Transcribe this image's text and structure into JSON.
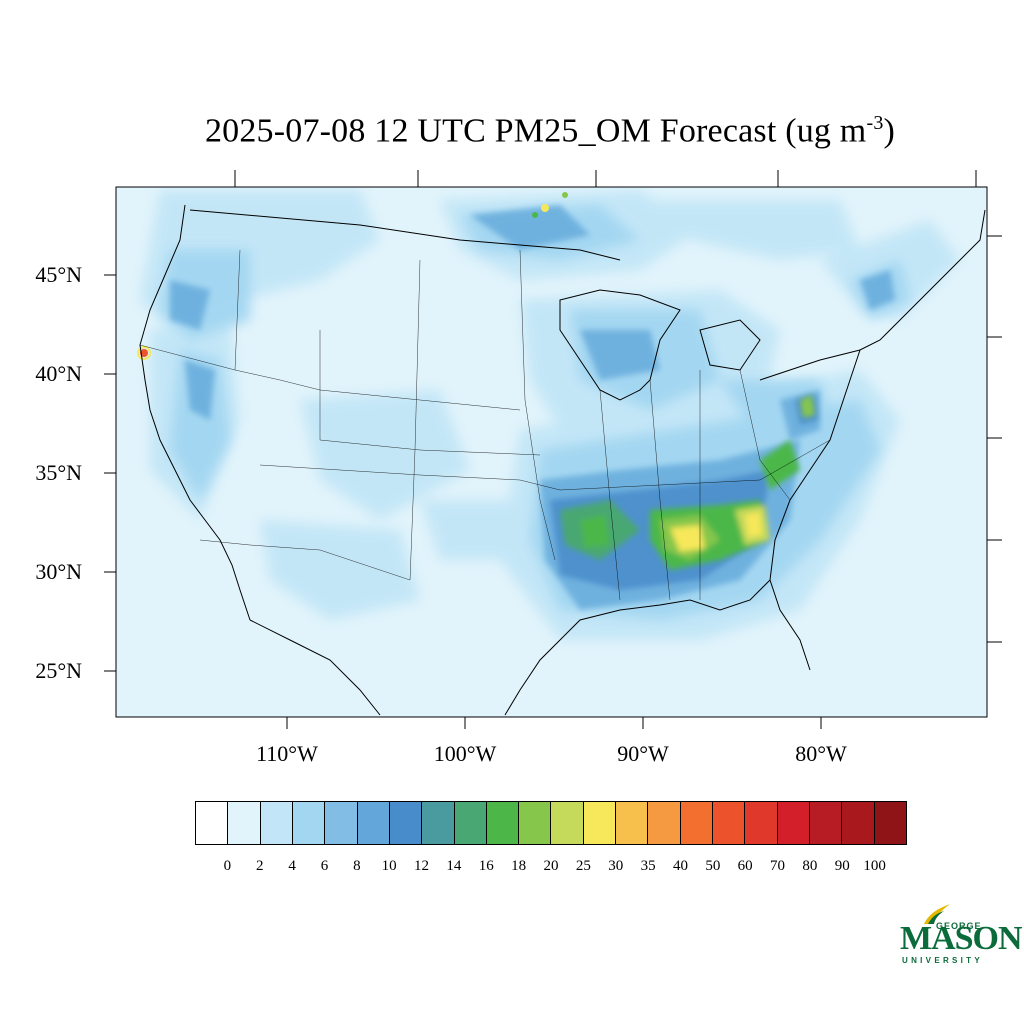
{
  "title": {
    "main": "2025-07-08 12 UTC PM25_OM Forecast (ug m",
    "exponent": "-3",
    "close": ")"
  },
  "map": {
    "lat_labels": [
      "45°N",
      "40°N",
      "35°N",
      "30°N",
      "25°N"
    ],
    "lon_labels": [
      "110°W",
      "100°W",
      "90°W",
      "80°W"
    ],
    "background_color": "#e1f3fb"
  },
  "colorbar": {
    "labels": [
      "0",
      "2",
      "4",
      "6",
      "8",
      "10",
      "12",
      "14",
      "16",
      "18",
      "20",
      "25",
      "30",
      "35",
      "40",
      "50",
      "60",
      "70",
      "80",
      "90",
      "100"
    ],
    "colors": [
      "#ffffff",
      "#e1f3fb",
      "#c2e6f7",
      "#a2d6f1",
      "#82bde6",
      "#62a6da",
      "#488ccb",
      "#499ba0",
      "#48a772",
      "#4cb748",
      "#86c64b",
      "#c5d95a",
      "#f6e85a",
      "#f7bf4b",
      "#f59a40",
      "#f26f30",
      "#ec532c",
      "#e0392b",
      "#d21f2a",
      "#b71b23",
      "#a8181c",
      "#8f1417"
    ]
  },
  "logo": {
    "line1": "GEORGE",
    "line2": "MASON",
    "line3": "UNIVERSITY",
    "color": "#0b6b3a",
    "accent": "#e6b800"
  }
}
